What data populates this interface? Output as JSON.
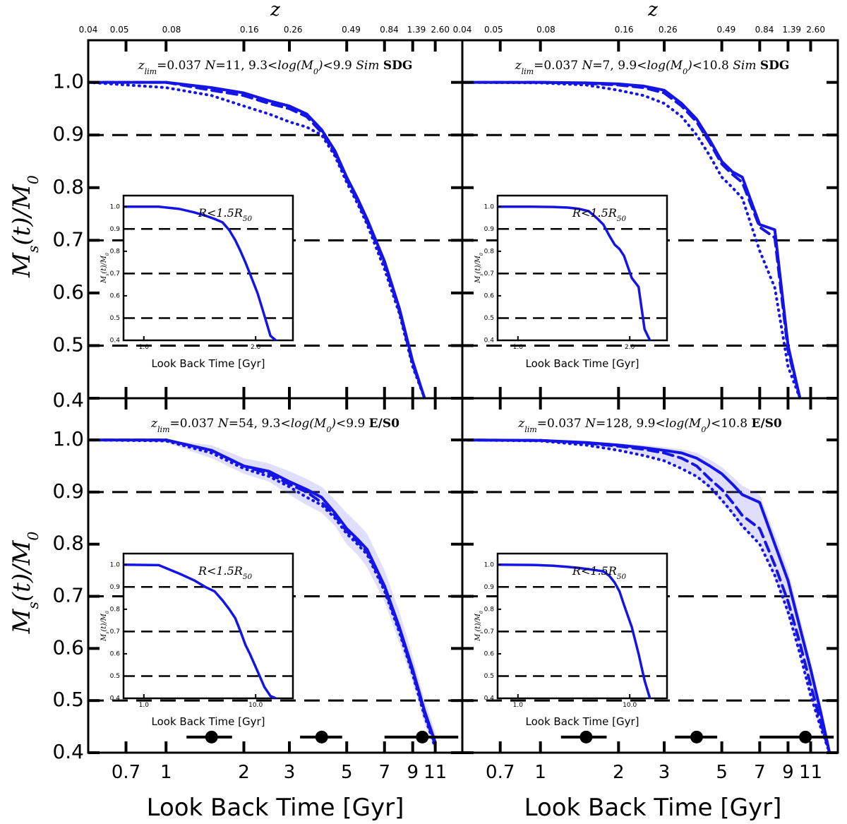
{
  "chart_data": {
    "type": "line",
    "x_axis_label": "Look Back Time [Gyr]",
    "y_axis_label": "M_s(t)/M_0",
    "top_axis_label": "z",
    "x_scale": "log",
    "xlim": [
      0.5,
      14
    ],
    "ylim": [
      0.4,
      1.08
    ],
    "y_ticks": [
      0.4,
      0.5,
      0.6,
      0.7,
      0.8,
      0.9,
      1.0
    ],
    "y_tick_labels": [
      "0.4",
      "0.5",
      "0.6",
      "0.7",
      "0.8",
      "0.9",
      "1.0"
    ],
    "x_ticks": [
      0.7,
      1,
      2,
      3,
      5,
      7,
      9,
      11
    ],
    "x_tick_labels": [
      "0.7",
      "1",
      "2",
      "3",
      "5",
      "7",
      "9",
      "11"
    ],
    "z_ticks": [
      0.04,
      0.05,
      0.08,
      0.16,
      0.26,
      0.49,
      0.84,
      1.39,
      2.6
    ],
    "z_tick_labels": [
      "0.04",
      "0.05",
      "0.08",
      "0.16",
      "0.26",
      "0.49",
      "0.84",
      "1.39",
      "2.60"
    ],
    "z_tick_positions_gyr": [
      0.5,
      0.66,
      1.05,
      2.1,
      3.1,
      5.2,
      7.3,
      9.3,
      11.5
    ],
    "reference_lines": [
      0.5,
      0.7,
      0.9
    ],
    "panels": [
      {
        "title_parts": {
          "zlim": "z_lim=0.037",
          "n": "N=11,",
          "mass": "9.3<log(M_0)<9.9",
          "sample": "Sim",
          "type": "SDG"
        },
        "series": [
          {
            "name": "solid",
            "x": [
              0.5,
              1,
              1.5,
              2,
              2.5,
              3,
              3.5,
              4,
              4.5,
              5,
              5.5,
              6,
              7,
              8,
              9,
              10
            ],
            "y": [
              1.0,
              1.0,
              0.99,
              0.98,
              0.965,
              0.955,
              0.94,
              0.91,
              0.87,
              0.82,
              0.78,
              0.74,
              0.66,
              0.57,
              0.47,
              0.4
            ]
          },
          {
            "name": "dashed",
            "x": [
              0.5,
              1,
              1.5,
              2,
              2.5,
              3,
              3.5,
              4,
              4.5,
              5,
              5.5,
              6,
              7,
              8,
              9,
              10
            ],
            "y": [
              1.0,
              1.0,
              0.985,
              0.975,
              0.96,
              0.95,
              0.935,
              0.905,
              0.865,
              0.815,
              0.775,
              0.735,
              0.655,
              0.565,
              0.465,
              0.4
            ]
          },
          {
            "name": "dotted",
            "x": [
              0.5,
              1,
              1.5,
              2,
              2.5,
              3,
              3.5,
              4,
              4.5,
              5,
              5.5,
              6,
              7,
              8,
              9,
              10
            ],
            "y": [
              1.0,
              0.99,
              0.975,
              0.955,
              0.94,
              0.925,
              0.915,
              0.9,
              0.86,
              0.81,
              0.77,
              0.73,
              0.645,
              0.56,
              0.46,
              0.4
            ]
          }
        ],
        "inset": {
          "title": "R<1.5R_50",
          "xlabel": "Look Back Time [Gyr]",
          "ylabel": "M_s(t)/M_0",
          "ylim": [
            0.4,
            1.05
          ],
          "y_ticks": [
            0.4,
            0.5,
            0.6,
            0.7,
            0.8,
            0.9,
            1.0
          ],
          "y_tick_labels": [
            "0.4",
            "0.5",
            "0.6",
            "0.7",
            "0.8",
            "0.9",
            "1.0"
          ],
          "x_tick_labels": [
            "1.0",
            "2.0"
          ],
          "reference_lines": [
            0.5,
            0.7,
            0.9
          ],
          "series_x": [
            0.5,
            1,
            1.5,
            2,
            2.5,
            3,
            3.5,
            4,
            4.5,
            5,
            5.5,
            6,
            7,
            8,
            9,
            10
          ],
          "series_y": [
            1.0,
            1.0,
            0.99,
            0.975,
            0.96,
            0.945,
            0.93,
            0.895,
            0.85,
            0.8,
            0.75,
            0.7,
            0.61,
            0.51,
            0.42,
            0.4
          ]
        },
        "show_bottom_axis": false,
        "markers": []
      },
      {
        "title_parts": {
          "zlim": "z_lim=0.037",
          "n": "N=7,",
          "mass": "9.9<log(M_0)<10.8",
          "sample": "Sim",
          "type": "SDG"
        },
        "series": [
          {
            "name": "solid",
            "x": [
              0.5,
              1,
              1.5,
              2,
              2.5,
              3,
              3.5,
              4,
              4.5,
              5,
              5.5,
              6,
              7,
              8,
              9,
              10
            ],
            "y": [
              1.0,
              1.0,
              0.999,
              0.997,
              0.993,
              0.985,
              0.96,
              0.93,
              0.89,
              0.85,
              0.83,
              0.82,
              0.73,
              0.72,
              0.5,
              0.4
            ]
          },
          {
            "name": "dashed",
            "x": [
              0.5,
              1,
              1.5,
              2,
              2.5,
              3,
              3.5,
              4,
              4.5,
              5,
              5.5,
              6,
              7,
              8,
              9,
              10
            ],
            "y": [
              1.0,
              1.0,
              0.998,
              0.995,
              0.99,
              0.98,
              0.955,
              0.925,
              0.885,
              0.845,
              0.825,
              0.81,
              0.725,
              0.705,
              0.49,
              0.4
            ]
          },
          {
            "name": "dotted",
            "x": [
              0.5,
              1,
              1.5,
              2,
              2.5,
              3,
              3.5,
              4,
              4.5,
              5,
              5.5,
              6,
              7,
              8,
              9,
              10
            ],
            "y": [
              1.0,
              0.999,
              0.995,
              0.985,
              0.975,
              0.96,
              0.935,
              0.9,
              0.86,
              0.82,
              0.8,
              0.78,
              0.68,
              0.61,
              0.46,
              0.4
            ]
          }
        ],
        "inset": {
          "title": "R<1.5R_50",
          "xlabel": "Look Back Time [Gyr]",
          "ylabel": "M_s(t)/M_0",
          "ylim": [
            0.4,
            1.05
          ],
          "y_ticks": [
            0.4,
            0.5,
            0.6,
            0.7,
            0.8,
            0.9,
            1.0
          ],
          "y_tick_labels": [
            "0.4",
            "0.5",
            "0.6",
            "0.7",
            "0.8",
            "0.9",
            "1.0"
          ],
          "x_tick_labels": [
            "1.0",
            "2.0"
          ],
          "reference_lines": [
            0.5,
            0.7,
            0.9
          ],
          "series_x": [
            0.5,
            1,
            1.5,
            2,
            2.5,
            3,
            3.5,
            4,
            4.5,
            5,
            5.5,
            6,
            7,
            8,
            9,
            10
          ],
          "series_y": [
            1.0,
            1.0,
            0.999,
            0.996,
            0.99,
            0.98,
            0.95,
            0.92,
            0.87,
            0.83,
            0.81,
            0.78,
            0.68,
            0.64,
            0.45,
            0.4
          ]
        },
        "show_bottom_axis": false,
        "markers": []
      },
      {
        "title_parts": {
          "zlim": "z_lim=0.037",
          "n": "N=54,",
          "mass": "9.3<log(M_0)<9.9",
          "sample": "",
          "type": "E/S0"
        },
        "series": [
          {
            "name": "solid",
            "x": [
              0.5,
              1,
              1.5,
              2,
              2.5,
              3,
              3.5,
              4,
              4.5,
              5,
              5.5,
              6,
              7,
              8,
              9,
              10,
              11
            ],
            "y": [
              1.0,
              1.0,
              0.98,
              0.95,
              0.94,
              0.92,
              0.905,
              0.89,
              0.86,
              0.83,
              0.81,
              0.79,
              0.72,
              0.64,
              0.56,
              0.48,
              0.42
            ]
          },
          {
            "name": "dashed",
            "x": [
              0.5,
              1,
              1.5,
              2,
              2.5,
              3,
              3.5,
              4,
              4.5,
              5,
              5.5,
              6,
              7,
              8,
              9,
              10,
              11
            ],
            "y": [
              1.0,
              1.0,
              0.98,
              0.95,
              0.935,
              0.915,
              0.9,
              0.88,
              0.855,
              0.825,
              0.805,
              0.785,
              0.715,
              0.635,
              0.555,
              0.475,
              0.415
            ]
          },
          {
            "name": "dotted",
            "x": [
              0.5,
              1,
              1.5,
              2,
              2.5,
              3,
              3.5,
              4,
              4.5,
              5,
              5.5,
              6,
              7,
              8,
              9,
              10,
              11
            ],
            "y": [
              1.0,
              0.998,
              0.975,
              0.945,
              0.93,
              0.91,
              0.89,
              0.875,
              0.85,
              0.82,
              0.8,
              0.78,
              0.71,
              0.63,
              0.55,
              0.47,
              0.41
            ]
          }
        ],
        "band": {
          "x": [
            0.5,
            1,
            1.5,
            2,
            2.5,
            3,
            3.5,
            4,
            4.5,
            5,
            5.5,
            6,
            7,
            8,
            9,
            10,
            11
          ],
          "upper": [
            1.0,
            1.0,
            0.99,
            0.965,
            0.955,
            0.94,
            0.925,
            0.91,
            0.885,
            0.86,
            0.84,
            0.82,
            0.75,
            0.67,
            0.585,
            0.5,
            0.44
          ],
          "lower": [
            1.0,
            0.995,
            0.965,
            0.935,
            0.92,
            0.895,
            0.875,
            0.86,
            0.835,
            0.8,
            0.78,
            0.755,
            0.69,
            0.61,
            0.535,
            0.455,
            0.4
          ]
        },
        "inset": {
          "title": "R<1.5R_50",
          "xlabel": "Look Back Time [Gyr]",
          "ylabel": "M_s(t)/M_0",
          "ylim": [
            0.4,
            1.05
          ],
          "y_ticks": [
            0.4,
            0.5,
            0.6,
            0.7,
            0.8,
            0.9,
            1.0
          ],
          "y_tick_labels": [
            "0.4",
            "0.5",
            "0.6",
            "0.7",
            "0.8",
            "0.9",
            "1.0"
          ],
          "x_tick_labels": [
            "1.0",
            "10.0"
          ],
          "reference_lines": [
            0.5,
            0.7,
            0.9
          ],
          "series_x": [
            0.5,
            1,
            1.5,
            2,
            2.5,
            3,
            3.5,
            4,
            4.5,
            5,
            5.5,
            6,
            7,
            8,
            9,
            10
          ],
          "series_y": [
            1.0,
            0.998,
            0.96,
            0.93,
            0.9,
            0.88,
            0.84,
            0.8,
            0.76,
            0.7,
            0.64,
            0.6,
            0.52,
            0.45,
            0.41,
            0.4
          ]
        },
        "show_bottom_axis": true,
        "markers": [
          {
            "x": 1.5,
            "xerr": [
              1.2,
              1.8
            ],
            "y": 0.43
          },
          {
            "x": 4.0,
            "xerr": [
              3.3,
              4.8
            ],
            "y": 0.43
          },
          {
            "x": 9.8,
            "xerr": [
              7.0,
              13.5
            ],
            "y": 0.43
          }
        ]
      },
      {
        "title_parts": {
          "zlim": "z_lim=0.037",
          "n": "N=128,",
          "mass": "9.9<log(M_0)<10.8",
          "sample": "",
          "type": "E/S0"
        },
        "series": [
          {
            "name": "solid",
            "x": [
              0.5,
              1,
              1.5,
              2,
              2.5,
              3,
              3.5,
              4,
              4.5,
              5,
              5.5,
              6,
              7,
              8,
              9,
              10,
              11,
              12,
              13
            ],
            "y": [
              1.0,
              0.999,
              0.995,
              0.99,
              0.985,
              0.98,
              0.975,
              0.965,
              0.95,
              0.935,
              0.915,
              0.895,
              0.88,
              0.8,
              0.73,
              0.64,
              0.56,
              0.48,
              0.4
            ]
          },
          {
            "name": "dashed",
            "x": [
              0.5,
              1,
              1.5,
              2,
              2.5,
              3,
              3.5,
              4,
              4.5,
              5,
              5.5,
              6,
              7,
              8,
              9,
              10,
              11,
              12,
              13
            ],
            "y": [
              1.0,
              0.999,
              0.994,
              0.988,
              0.982,
              0.975,
              0.965,
              0.95,
              0.925,
              0.905,
              0.88,
              0.855,
              0.83,
              0.76,
              0.69,
              0.61,
              0.53,
              0.46,
              0.4
            ]
          },
          {
            "name": "dotted",
            "x": [
              0.5,
              1,
              1.5,
              2,
              2.5,
              3,
              3.5,
              4,
              4.5,
              5,
              5.5,
              6,
              7,
              8,
              9,
              10,
              11,
              12,
              13
            ],
            "y": [
              1.0,
              0.998,
              0.99,
              0.98,
              0.97,
              0.96,
              0.945,
              0.93,
              0.91,
              0.885,
              0.86,
              0.835,
              0.8,
              0.74,
              0.67,
              0.59,
              0.51,
              0.45,
              0.4
            ]
          }
        ],
        "band": {
          "x": [
            0.5,
            1,
            1.5,
            2,
            2.5,
            3,
            3.5,
            4,
            4.5,
            5,
            5.5,
            6,
            7,
            8,
            9,
            10,
            11,
            12,
            13
          ],
          "upper": [
            1.0,
            1.0,
            0.997,
            0.993,
            0.99,
            0.986,
            0.982,
            0.975,
            0.962,
            0.948,
            0.93,
            0.912,
            0.895,
            0.82,
            0.75,
            0.66,
            0.575,
            0.495,
            0.415
          ],
          "lower": [
            1.0,
            0.997,
            0.99,
            0.982,
            0.972,
            0.962,
            0.948,
            0.93,
            0.905,
            0.88,
            0.855,
            0.83,
            0.805,
            0.735,
            0.66,
            0.585,
            0.505,
            0.44,
            0.4
          ]
        },
        "inset": {
          "title": "R<1.5R_50",
          "xlabel": "Look Back Time [Gyr]",
          "ylabel": "M_s(t)/M_0",
          "ylim": [
            0.4,
            1.05
          ],
          "y_ticks": [
            0.4,
            0.5,
            0.6,
            0.7,
            0.8,
            0.9,
            1.0
          ],
          "y_tick_labels": [
            "0.4",
            "0.5",
            "0.6",
            "0.7",
            "0.8",
            "0.9",
            "1.0"
          ],
          "x_tick_labels": [
            "1.0",
            "10.0"
          ],
          "reference_lines": [
            0.5,
            0.7,
            0.9
          ],
          "series_x": [
            0.5,
            1,
            1.5,
            2,
            2.5,
            3,
            3.5,
            4,
            4.5,
            5,
            5.5,
            6,
            7,
            8,
            9,
            10
          ],
          "series_y": [
            1.0,
            0.999,
            0.995,
            0.99,
            0.985,
            0.98,
            0.975,
            0.97,
            0.95,
            0.92,
            0.88,
            0.82,
            0.72,
            0.6,
            0.48,
            0.4
          ]
        },
        "show_bottom_axis": true,
        "markers": [
          {
            "x": 1.5,
            "xerr": [
              1.2,
              1.8
            ],
            "y": 0.43
          },
          {
            "x": 4.0,
            "xerr": [
              3.3,
              4.8
            ],
            "y": 0.43
          },
          {
            "x": 10.5,
            "xerr": [
              7.0,
              13.5
            ],
            "y": 0.43
          }
        ]
      }
    ]
  }
}
